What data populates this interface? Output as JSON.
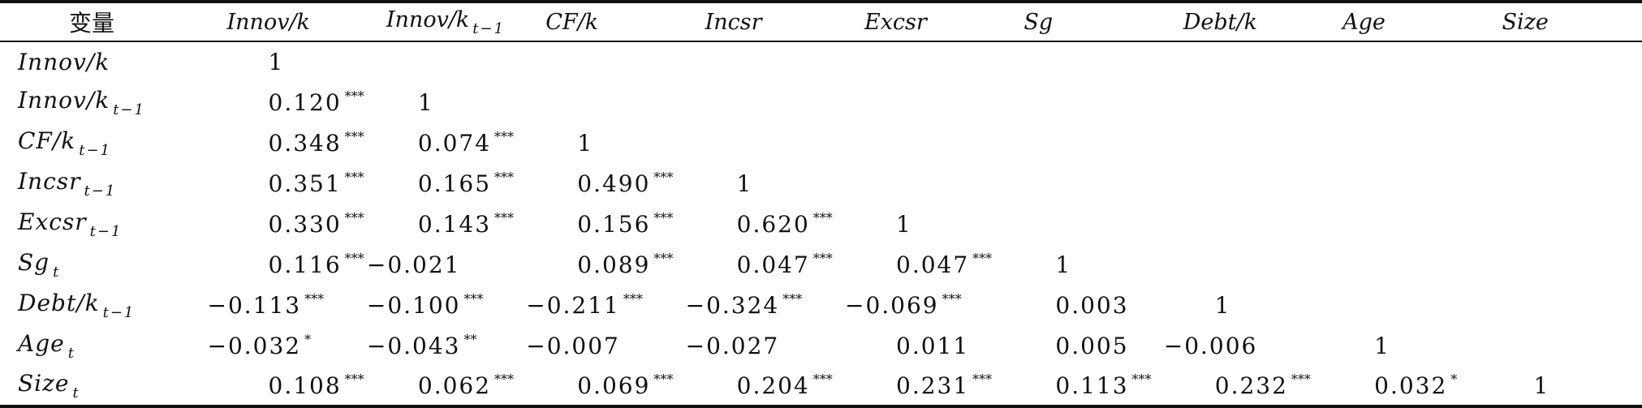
{
  "table": {
    "header": [
      "变量",
      "Innov/k",
      "Innov/k",
      "CF/k",
      "Incsr",
      "Excsr",
      "Sg",
      "Debt/k",
      "Age",
      "Size"
    ],
    "header_subs": [
      "",
      "",
      "t−1",
      "",
      "",
      "",
      "",
      "",
      "",
      ""
    ],
    "rows": [
      {
        "label": "Innov/k",
        "sub": "",
        "cells": [
          {
            "v": "1",
            "s": ""
          }
        ]
      },
      {
        "label": "Innov/k",
        "sub": "t−1",
        "cells": [
          {
            "v": "0.120",
            "s": "***"
          },
          {
            "v": "1",
            "s": ""
          }
        ]
      },
      {
        "label": "CF/k",
        "sub": "t−1",
        "cells": [
          {
            "v": "0.348",
            "s": "***"
          },
          {
            "v": "0.074",
            "s": "***"
          },
          {
            "v": "1",
            "s": ""
          }
        ]
      },
      {
        "label": "Incsr",
        "sub": "t−1",
        "cells": [
          {
            "v": "0.351",
            "s": "***"
          },
          {
            "v": "0.165",
            "s": "***"
          },
          {
            "v": "0.490",
            "s": "***"
          },
          {
            "v": "1",
            "s": ""
          }
        ]
      },
      {
        "label": "Excsr",
        "sub": "t−1",
        "cells": [
          {
            "v": "0.330",
            "s": "***"
          },
          {
            "v": "0.143",
            "s": "***"
          },
          {
            "v": "0.156",
            "s": "***"
          },
          {
            "v": "0.620",
            "s": "***"
          },
          {
            "v": "1",
            "s": ""
          }
        ]
      },
      {
        "label": "Sg",
        "sub": "t",
        "cells": [
          {
            "v": "0.116",
            "s": "***"
          },
          {
            "v": "−0.021",
            "s": ""
          },
          {
            "v": "0.089",
            "s": "***"
          },
          {
            "v": "0.047",
            "s": "***"
          },
          {
            "v": "0.047",
            "s": "***"
          },
          {
            "v": "1",
            "s": ""
          }
        ]
      },
      {
        "label": "Debt/k",
        "sub": "t−1",
        "cells": [
          {
            "v": "−0.113",
            "s": "***"
          },
          {
            "v": "−0.100",
            "s": "***"
          },
          {
            "v": "−0.211",
            "s": "***"
          },
          {
            "v": "−0.324",
            "s": "***"
          },
          {
            "v": "−0.069",
            "s": "***"
          },
          {
            "v": "0.003",
            "s": ""
          },
          {
            "v": "1",
            "s": ""
          }
        ]
      },
      {
        "label": "Age",
        "sub": "t",
        "cells": [
          {
            "v": "−0.032",
            "s": "*"
          },
          {
            "v": "−0.043",
            "s": "**"
          },
          {
            "v": "−0.007",
            "s": ""
          },
          {
            "v": "−0.027",
            "s": ""
          },
          {
            "v": "0.011",
            "s": ""
          },
          {
            "v": "0.005",
            "s": ""
          },
          {
            "v": "−0.006",
            "s": ""
          },
          {
            "v": "1",
            "s": ""
          }
        ]
      },
      {
        "label": "Size",
        "sub": "t",
        "cells": [
          {
            "v": "0.108",
            "s": "***"
          },
          {
            "v": "0.062",
            "s": "***"
          },
          {
            "v": "0.069",
            "s": "***"
          },
          {
            "v": "0.204",
            "s": "***"
          },
          {
            "v": "0.231",
            "s": "***"
          },
          {
            "v": "0.113",
            "s": "***"
          },
          {
            "v": "0.232",
            "s": "***"
          },
          {
            "v": "0.032",
            "s": "*"
          },
          {
            "v": "1",
            "s": ""
          }
        ]
      }
    ]
  }
}
